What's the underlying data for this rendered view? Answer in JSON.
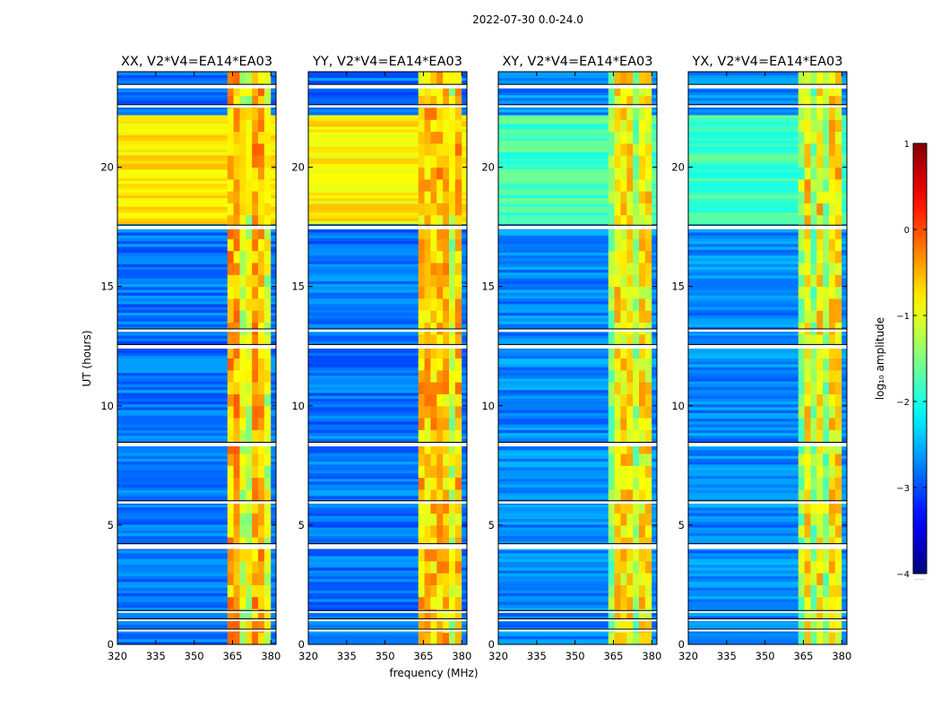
{
  "figure": {
    "suptitle": "2022-07-30 0.0-24.0",
    "xlabel": "frequency (MHz)",
    "ylabel": "UT (hours)"
  },
  "colorbar": {
    "label": "log₁₀ amplitude",
    "range": [
      -4,
      1
    ],
    "ticks": [
      1,
      0,
      -1,
      -2,
      -3,
      -4
    ],
    "tick_labels": [
      "1",
      "0",
      "−1",
      "−2",
      "−3",
      "−4"
    ],
    "colormap": "jet",
    "under_label": "......"
  },
  "chart_data": [
    {
      "type": "heatmap",
      "title": "XX, V2*V4=EA14*EA03",
      "xlim": [
        320,
        382
      ],
      "ylim": [
        0,
        24
      ],
      "x_ticks": [
        320,
        335,
        350,
        365,
        380
      ],
      "y_ticks": [
        0,
        5,
        10,
        15,
        20
      ],
      "background_level": -2.8,
      "band_level": -0.5,
      "band_range_mhz": [
        363,
        379
      ],
      "high_state_ut": [
        17.6,
        22.2
      ],
      "high_state_level": -0.8,
      "gaps_ut": [
        [
          0.55,
          0.62
        ],
        [
          1.0,
          1.05
        ],
        [
          1.35,
          1.4
        ],
        [
          4.0,
          4.2
        ],
        [
          5.9,
          6.0
        ],
        [
          8.3,
          8.45
        ],
        [
          12.4,
          12.55
        ],
        [
          13.1,
          13.2
        ],
        [
          17.4,
          17.55
        ],
        [
          22.5,
          22.6
        ],
        [
          23.3,
          23.45
        ]
      ]
    },
    {
      "type": "heatmap",
      "title": "YY, V2*V4=EA14*EA03",
      "xlim": [
        320,
        382
      ],
      "ylim": [
        0,
        24
      ],
      "x_ticks": [
        320,
        335,
        350,
        365,
        380
      ],
      "y_ticks": [
        0,
        5,
        10,
        15,
        20
      ],
      "background_level": -2.8,
      "band_level": -0.6,
      "band_range_mhz": [
        363,
        379
      ],
      "high_state_ut": [
        17.6,
        22.2
      ],
      "high_state_level": -0.8,
      "gaps_ut": [
        [
          0.55,
          0.62
        ],
        [
          1.0,
          1.05
        ],
        [
          1.35,
          1.4
        ],
        [
          4.0,
          4.2
        ],
        [
          5.9,
          6.0
        ],
        [
          8.3,
          8.45
        ],
        [
          12.4,
          12.55
        ],
        [
          13.1,
          13.2
        ],
        [
          17.4,
          17.55
        ],
        [
          22.5,
          22.6
        ],
        [
          23.3,
          23.45
        ]
      ]
    },
    {
      "type": "heatmap",
      "title": "XY, V2*V4=EA14*EA03",
      "xlim": [
        320,
        382
      ],
      "ylim": [
        0,
        24
      ],
      "x_ticks": [
        320,
        335,
        350,
        365,
        380
      ],
      "y_ticks": [
        0,
        5,
        10,
        15,
        20
      ],
      "background_level": -2.7,
      "band_level": -0.8,
      "band_range_mhz": [
        363,
        379
      ],
      "high_state_ut": [
        17.6,
        22.2
      ],
      "high_state_level": -1.8,
      "gaps_ut": [
        [
          0.55,
          0.62
        ],
        [
          1.0,
          1.05
        ],
        [
          1.35,
          1.4
        ],
        [
          4.0,
          4.2
        ],
        [
          5.9,
          6.0
        ],
        [
          8.3,
          8.45
        ],
        [
          12.4,
          12.55
        ],
        [
          13.1,
          13.2
        ],
        [
          17.4,
          17.55
        ],
        [
          22.5,
          22.6
        ],
        [
          23.3,
          23.45
        ]
      ]
    },
    {
      "type": "heatmap",
      "title": "YX, V2*V4=EA14*EA03",
      "xlim": [
        320,
        382
      ],
      "ylim": [
        0,
        24
      ],
      "x_ticks": [
        320,
        335,
        350,
        365,
        380
      ],
      "y_ticks": [
        0,
        5,
        10,
        15,
        20
      ],
      "background_level": -2.7,
      "band_level": -0.8,
      "band_range_mhz": [
        363,
        379
      ],
      "high_state_ut": [
        17.6,
        22.2
      ],
      "high_state_level": -1.8,
      "gaps_ut": [
        [
          0.55,
          0.62
        ],
        [
          1.0,
          1.05
        ],
        [
          1.35,
          1.4
        ],
        [
          4.0,
          4.2
        ],
        [
          5.9,
          6.0
        ],
        [
          8.3,
          8.45
        ],
        [
          12.4,
          12.55
        ],
        [
          13.1,
          13.2
        ],
        [
          17.4,
          17.55
        ],
        [
          22.5,
          22.6
        ],
        [
          23.3,
          23.45
        ]
      ]
    }
  ]
}
